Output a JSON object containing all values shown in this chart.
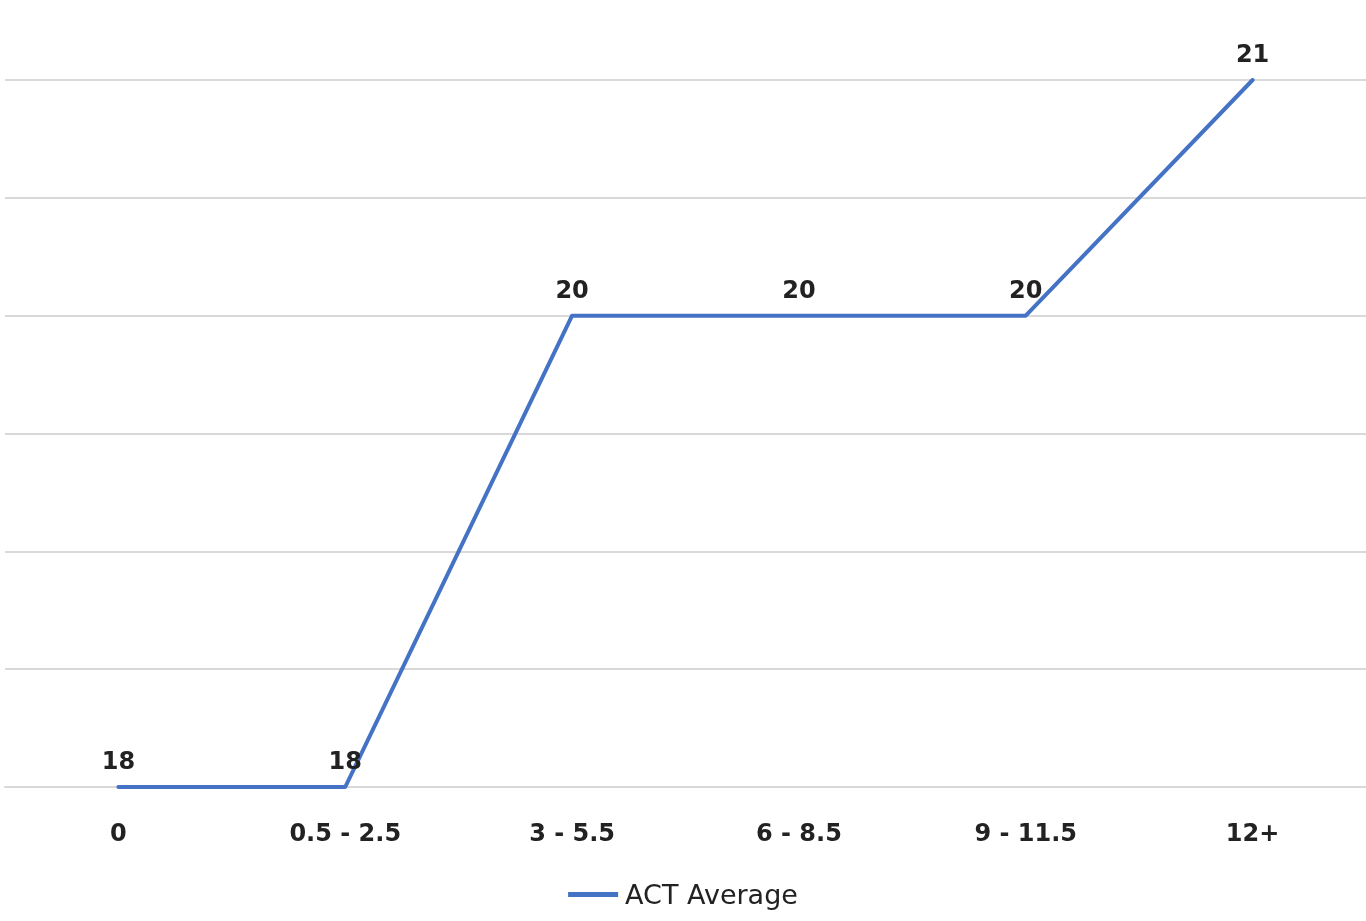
{
  "chart_data": {
    "type": "line",
    "categories": [
      "0",
      "0.5 - 2.5",
      "3 - 5.5",
      "6 - 8.5",
      "9 - 11.5",
      "12+"
    ],
    "series": [
      {
        "name": "ACT Average",
        "color": "#4472c4",
        "values": [
          18,
          18,
          20,
          20,
          20,
          21
        ]
      }
    ],
    "tick_labels": "x",
    "grid": "y",
    "legend": "bottom",
    "data_labels": true,
    "marker": "none",
    "line_style": "solid"
  }
}
